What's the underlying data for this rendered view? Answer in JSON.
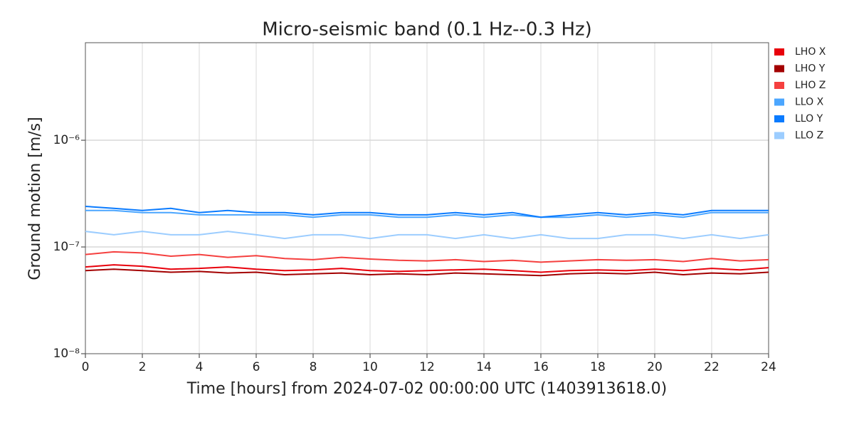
{
  "chart_data": {
    "type": "line",
    "title": "Micro-seismic band (0.1 Hz--0.3 Hz)",
    "x_label": "Time [hours] from 2024-07-02 00:00:00 UTC (1403913618.0)",
    "y_label": "Ground motion [m/s]",
    "x": [
      0,
      1,
      2,
      3,
      4,
      5,
      6,
      7,
      8,
      9,
      10,
      11,
      12,
      13,
      14,
      15,
      16,
      17,
      18,
      19,
      20,
      21,
      22,
      23,
      24
    ],
    "xlim": [
      0,
      24
    ],
    "xticks": [
      0,
      2,
      4,
      6,
      8,
      10,
      12,
      14,
      16,
      18,
      20,
      22,
      24
    ],
    "ylim": [
      1e-08,
      8.2e-06
    ],
    "log_y": true,
    "grid": true,
    "legend": "outside-right",
    "yticks": [
      {
        "value": 1e-08,
        "label": "10⁻⁸"
      },
      {
        "value": 1e-07,
        "label": "10⁻⁷"
      },
      {
        "value": 1e-06,
        "label": "10⁻⁶"
      }
    ],
    "series": [
      {
        "name": "LHO X",
        "color": "#e8000b",
        "values": [
          6.5e-08,
          6.8e-08,
          6.6e-08,
          6.2e-08,
          6.3e-08,
          6.5e-08,
          6.2e-08,
          6e-08,
          6.1e-08,
          6.3e-08,
          6e-08,
          5.9e-08,
          6e-08,
          6.1e-08,
          6.2e-08,
          6e-08,
          5.8e-08,
          6e-08,
          6.1e-08,
          6e-08,
          6.2e-08,
          6e-08,
          6.3e-08,
          6.1e-08,
          6.4e-08
        ]
      },
      {
        "name": "LHO Y",
        "color": "#a30000",
        "values": [
          6e-08,
          6.2e-08,
          6e-08,
          5.8e-08,
          5.9e-08,
          5.7e-08,
          5.8e-08,
          5.5e-08,
          5.6e-08,
          5.7e-08,
          5.5e-08,
          5.6e-08,
          5.5e-08,
          5.7e-08,
          5.6e-08,
          5.5e-08,
          5.4e-08,
          5.6e-08,
          5.7e-08,
          5.6e-08,
          5.8e-08,
          5.5e-08,
          5.7e-08,
          5.6e-08,
          5.8e-08
        ]
      },
      {
        "name": "LHO Z",
        "color": "#f5403f",
        "values": [
          8.5e-08,
          9e-08,
          8.8e-08,
          8.2e-08,
          8.5e-08,
          8e-08,
          8.3e-08,
          7.8e-08,
          7.6e-08,
          8e-08,
          7.7e-08,
          7.5e-08,
          7.4e-08,
          7.6e-08,
          7.3e-08,
          7.5e-08,
          7.2e-08,
          7.4e-08,
          7.6e-08,
          7.5e-08,
          7.6e-08,
          7.3e-08,
          7.8e-08,
          7.4e-08,
          7.6e-08
        ]
      },
      {
        "name": "LLO X",
        "color": "#4ba6ff",
        "values": [
          2.2e-07,
          2.2e-07,
          2.1e-07,
          2.1e-07,
          2e-07,
          2e-07,
          2e-07,
          2e-07,
          1.9e-07,
          2e-07,
          2e-07,
          1.9e-07,
          1.9e-07,
          2e-07,
          1.9e-07,
          2e-07,
          1.9e-07,
          1.9e-07,
          2e-07,
          1.9e-07,
          2e-07,
          1.9e-07,
          2.1e-07,
          2.1e-07,
          2.1e-07
        ]
      },
      {
        "name": "LLO Y",
        "color": "#0a7bff",
        "values": [
          2.4e-07,
          2.3e-07,
          2.2e-07,
          2.3e-07,
          2.1e-07,
          2.2e-07,
          2.1e-07,
          2.1e-07,
          2e-07,
          2.1e-07,
          2.1e-07,
          2e-07,
          2e-07,
          2.1e-07,
          2e-07,
          2.1e-07,
          1.9e-07,
          2e-07,
          2.1e-07,
          2e-07,
          2.1e-07,
          2e-07,
          2.2e-07,
          2.2e-07,
          2.2e-07
        ]
      },
      {
        "name": "LLO Z",
        "color": "#9ccdff",
        "values": [
          1.4e-07,
          1.3e-07,
          1.4e-07,
          1.3e-07,
          1.3e-07,
          1.4e-07,
          1.3e-07,
          1.2e-07,
          1.3e-07,
          1.3e-07,
          1.2e-07,
          1.3e-07,
          1.3e-07,
          1.2e-07,
          1.3e-07,
          1.2e-07,
          1.3e-07,
          1.2e-07,
          1.2e-07,
          1.3e-07,
          1.3e-07,
          1.2e-07,
          1.3e-07,
          1.2e-07,
          1.3e-07
        ]
      }
    ]
  }
}
